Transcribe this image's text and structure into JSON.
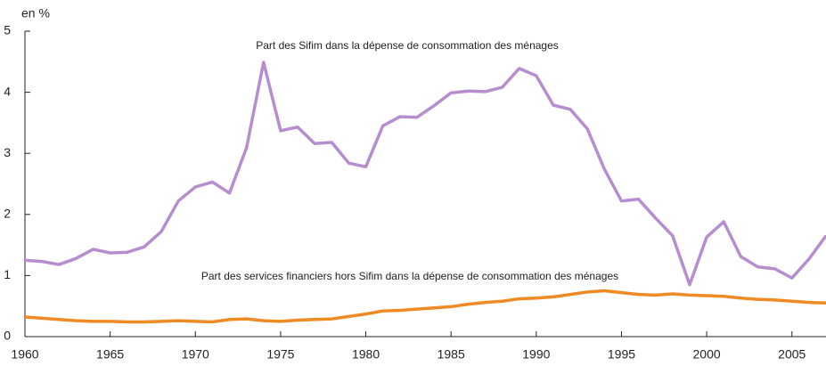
{
  "chart_data": {
    "type": "line",
    "y_label": "en %",
    "x": [
      1960,
      1961,
      1962,
      1963,
      1964,
      1965,
      1966,
      1967,
      1968,
      1969,
      1970,
      1971,
      1972,
      1973,
      1974,
      1975,
      1976,
      1977,
      1978,
      1979,
      1980,
      1981,
      1982,
      1983,
      1984,
      1985,
      1986,
      1987,
      1988,
      1989,
      1990,
      1991,
      1992,
      1993,
      1994,
      1995,
      1996,
      1997,
      1998,
      1999,
      2000,
      2001,
      2002,
      2003,
      2004,
      2005,
      2006,
      2007
    ],
    "series": [
      {
        "name": "Part des Sifim dans la dépense de consommation des ménages",
        "color": "#b68ed0",
        "values": [
          1.25,
          1.23,
          1.18,
          1.28,
          1.43,
          1.37,
          1.38,
          1.47,
          1.72,
          2.22,
          2.45,
          2.53,
          2.35,
          3.09,
          4.49,
          3.37,
          3.43,
          3.16,
          3.18,
          2.84,
          2.78,
          3.45,
          3.6,
          3.59,
          3.78,
          3.99,
          4.02,
          4.01,
          4.08,
          4.39,
          4.27,
          3.79,
          3.72,
          3.4,
          2.74,
          2.22,
          2.25,
          1.94,
          1.65,
          0.85,
          1.63,
          1.88,
          1.31,
          1.14,
          1.11,
          0.96,
          1.27,
          1.65
        ]
      },
      {
        "name": "Part des services financiers hors Sifim dans la dépense de consommation des ménages",
        "color": "#f08a24",
        "values": [
          0.32,
          0.3,
          0.28,
          0.26,
          0.25,
          0.25,
          0.24,
          0.24,
          0.25,
          0.26,
          0.25,
          0.24,
          0.28,
          0.29,
          0.26,
          0.25,
          0.27,
          0.28,
          0.29,
          0.33,
          0.37,
          0.42,
          0.43,
          0.45,
          0.47,
          0.49,
          0.53,
          0.56,
          0.58,
          0.62,
          0.63,
          0.65,
          0.69,
          0.73,
          0.75,
          0.72,
          0.69,
          0.68,
          0.7,
          0.68,
          0.67,
          0.66,
          0.63,
          0.61,
          0.6,
          0.58,
          0.56,
          0.55
        ]
      }
    ],
    "xlim": [
      1960,
      2007
    ],
    "xticks": [
      1960,
      1965,
      1970,
      1975,
      1980,
      1985,
      1990,
      1995,
      2000,
      2005
    ],
    "ylim": [
      0,
      5
    ],
    "yticks": [
      0,
      1,
      2,
      3,
      4,
      5
    ],
    "grid": false
  }
}
